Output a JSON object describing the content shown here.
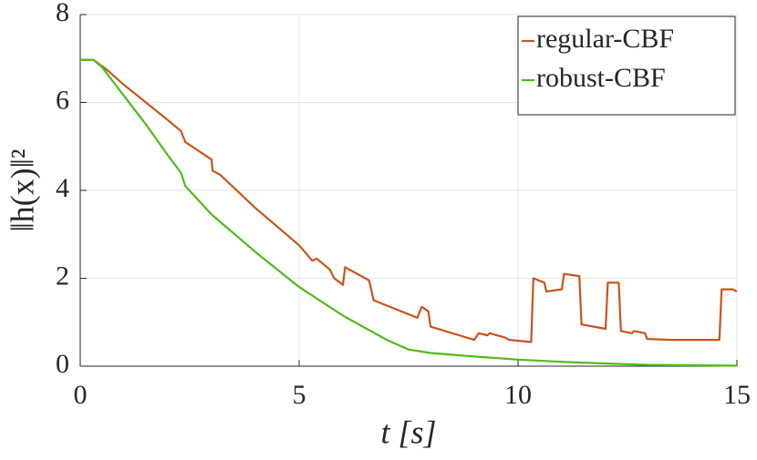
{
  "chart_data": {
    "type": "line",
    "x_label": "t [s]",
    "y_label": "‖h(x)‖²",
    "xlim": [
      0,
      15
    ],
    "xticks": [
      0,
      5,
      10,
      15
    ],
    "ylim": [
      0,
      8
    ],
    "yticks": [
      0,
      2,
      4,
      6,
      8
    ],
    "grid": true,
    "legend": "upper right",
    "series": [
      {
        "name": "regular-CBF",
        "color": "#c9541b",
        "x": [
          0,
          0.3,
          0.6,
          1,
          1.5,
          2,
          2.3,
          2.4,
          3.0,
          3.02,
          3.2,
          4,
          5,
          5.3,
          5.4,
          5.7,
          5.8,
          6.0,
          6.05,
          6.6,
          6.7,
          7.7,
          7.8,
          7.95,
          8.0,
          9.0,
          9.1,
          9.3,
          9.35,
          9.7,
          9.8,
          10.3,
          10.35,
          10.6,
          10.65,
          11.0,
          11.05,
          11.4,
          11.45,
          12.0,
          12.05,
          12.3,
          12.35,
          12.6,
          12.65,
          12.9,
          12.95,
          13.5,
          14.6,
          14.65,
          14.9,
          15
        ],
        "values": [
          6.97,
          6.97,
          6.75,
          6.4,
          6.0,
          5.6,
          5.35,
          5.1,
          4.7,
          4.45,
          4.35,
          3.6,
          2.75,
          2.4,
          2.45,
          2.2,
          2.0,
          1.85,
          2.25,
          1.95,
          1.5,
          1.1,
          1.35,
          1.25,
          0.9,
          0.6,
          0.75,
          0.7,
          0.75,
          0.65,
          0.6,
          0.55,
          2.0,
          1.9,
          1.7,
          1.75,
          2.1,
          2.05,
          0.95,
          0.85,
          1.9,
          1.9,
          0.8,
          0.75,
          0.8,
          0.75,
          0.62,
          0.6,
          0.6,
          1.75,
          1.75,
          1.7
        ]
      },
      {
        "name": "robust-CBF",
        "color": "#4dbb19",
        "x": [
          0,
          0.3,
          0.5,
          1,
          1.5,
          2,
          2.3,
          2.4,
          3,
          4,
          5,
          6,
          7,
          7.5,
          8,
          9,
          10,
          11,
          12,
          13,
          14,
          15
        ],
        "values": [
          6.97,
          6.97,
          6.8,
          6.15,
          5.5,
          4.8,
          4.4,
          4.1,
          3.45,
          2.6,
          1.8,
          1.15,
          0.6,
          0.38,
          0.3,
          0.22,
          0.15,
          0.1,
          0.06,
          0.03,
          0.02,
          0.01
        ]
      }
    ]
  }
}
